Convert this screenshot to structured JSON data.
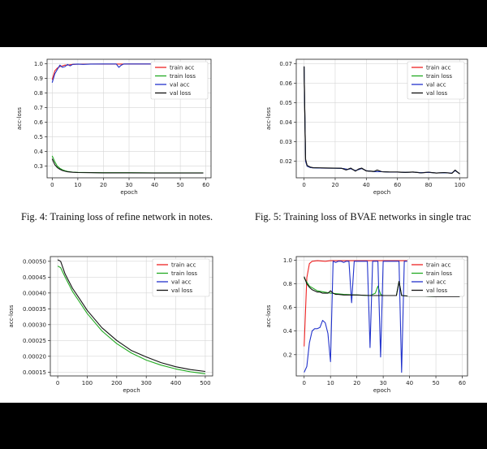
{
  "captions": {
    "fig4": "Fig. 4: Training loss of refine network in notes.",
    "fig5": "Fig. 5: Training loss of BVAE networks in single trac"
  },
  "chart_data": [
    {
      "id": "refine",
      "type": "line",
      "xlabel": "epoch",
      "ylabel": "acc-loss",
      "xlim": [
        -2,
        62
      ],
      "ylim": [
        0.22,
        1.03
      ],
      "xticks": [
        0,
        10,
        20,
        30,
        40,
        50,
        60
      ],
      "xtick_labels": [
        "0",
        "10",
        "20",
        "30",
        "40",
        "50",
        "60"
      ],
      "yticks": [
        0.3,
        0.4,
        0.5,
        0.6,
        0.7,
        0.8,
        0.9,
        1.0
      ],
      "ytick_labels": [
        "0.3",
        "0.4",
        "0.5",
        "0.6",
        "0.7",
        "0.8",
        "0.9",
        "1.0"
      ],
      "grid": true,
      "legend": "top-right",
      "series": [
        {
          "name": "train acc",
          "color": "#ee2222",
          "x": [
            0,
            1,
            2,
            3,
            4,
            5,
            6,
            8,
            10,
            15,
            20,
            25,
            27,
            28,
            30,
            35,
            40,
            45,
            50,
            55,
            59
          ],
          "values": [
            0.89,
            0.95,
            0.97,
            0.98,
            0.985,
            0.99,
            0.99,
            0.995,
            0.996,
            0.997,
            0.997,
            0.997,
            0.997,
            0.997,
            0.998,
            0.998,
            0.998,
            0.998,
            0.998,
            0.998,
            0.998
          ]
        },
        {
          "name": "train loss",
          "color": "#22aa22",
          "x": [
            0,
            1,
            2,
            3,
            4,
            5,
            6,
            8,
            10,
            15,
            20,
            30,
            40,
            50,
            59
          ],
          "values": [
            0.37,
            0.33,
            0.3,
            0.285,
            0.275,
            0.268,
            0.263,
            0.259,
            0.257,
            0.256,
            0.255,
            0.255,
            0.254,
            0.254,
            0.254
          ]
        },
        {
          "name": "val acc",
          "color": "#2233cc",
          "x": [
            0,
            1,
            2,
            3,
            4,
            5,
            6,
            7,
            8,
            10,
            12,
            15,
            20,
            25,
            26,
            27,
            28,
            30,
            35,
            40,
            45,
            50,
            55,
            59
          ],
          "values": [
            0.87,
            0.93,
            0.96,
            0.99,
            0.975,
            0.98,
            0.995,
            0.985,
            0.995,
            0.997,
            0.995,
            0.997,
            0.998,
            0.998,
            0.975,
            0.99,
            0.998,
            0.998,
            0.998,
            0.998,
            0.998,
            0.998,
            0.998,
            0.998
          ]
        },
        {
          "name": "val loss",
          "color": "#111111",
          "x": [
            0,
            1,
            2,
            3,
            4,
            5,
            6,
            8,
            10,
            15,
            20,
            30,
            40,
            50,
            59
          ],
          "values": [
            0.35,
            0.31,
            0.29,
            0.278,
            0.27,
            0.265,
            0.261,
            0.258,
            0.256,
            0.255,
            0.254,
            0.254,
            0.253,
            0.253,
            0.253
          ]
        }
      ]
    },
    {
      "id": "bvae",
      "type": "line",
      "xlabel": "epoch",
      "ylabel": "acc-loss",
      "xlim": [
        -5,
        105
      ],
      "ylim": [
        0.0115,
        0.0722
      ],
      "xticks": [
        0,
        20,
        40,
        60,
        80,
        100
      ],
      "xtick_labels": [
        "0",
        "20",
        "40",
        "60",
        "80",
        "100"
      ],
      "yticks": [
        0.02,
        0.03,
        0.04,
        0.05,
        0.06,
        0.07
      ],
      "ytick_labels": [
        "0.02",
        "0.03",
        "0.04",
        "0.05",
        "0.06",
        "0.07"
      ],
      "grid": true,
      "legend": "top-right",
      "series": [
        {
          "name": "train acc",
          "color": "#ee2222",
          "x": [
            0,
            1,
            2,
            4,
            6,
            10,
            20,
            25,
            28,
            30,
            33,
            35,
            37,
            40,
            45,
            50,
            55,
            60,
            65,
            70,
            75,
            80,
            85,
            90,
            95,
            97,
            100
          ],
          "values": [
            0.0685,
            0.02,
            0.0175,
            0.0168,
            0.0166,
            0.0165,
            0.0164,
            0.0163,
            0.0158,
            0.0162,
            0.0152,
            0.0157,
            0.0163,
            0.0151,
            0.0147,
            0.0146,
            0.0144,
            0.0144,
            0.0143,
            0.0144,
            0.0141,
            0.0143,
            0.014,
            0.0141,
            0.0139,
            0.0152,
            0.0136
          ]
        },
        {
          "name": "train loss",
          "color": "#22aa22",
          "x": [
            0,
            1,
            2,
            4,
            6,
            10,
            20,
            25,
            28,
            30,
            33,
            35,
            37,
            40,
            45,
            50,
            55,
            60,
            65,
            70,
            75,
            80,
            85,
            90,
            95,
            97,
            100
          ],
          "values": [
            0.0685,
            0.02,
            0.0175,
            0.0168,
            0.0166,
            0.0165,
            0.0164,
            0.0163,
            0.0158,
            0.0162,
            0.0152,
            0.0157,
            0.0163,
            0.0151,
            0.0147,
            0.0146,
            0.0144,
            0.0144,
            0.0143,
            0.0144,
            0.0141,
            0.0143,
            0.014,
            0.0141,
            0.0139,
            0.0152,
            0.0136
          ]
        },
        {
          "name": "val acc",
          "color": "#2233cc",
          "x": [
            0,
            1,
            2,
            4,
            6,
            10,
            20,
            25,
            28,
            30,
            33,
            35,
            37,
            40,
            45,
            50,
            55,
            60,
            65,
            70,
            75,
            80,
            85,
            90,
            95,
            97,
            100
          ],
          "values": [
            0.0685,
            0.02,
            0.0175,
            0.0168,
            0.0166,
            0.0165,
            0.0164,
            0.0163,
            0.0158,
            0.0162,
            0.0152,
            0.0157,
            0.0163,
            0.0151,
            0.0147,
            0.0146,
            0.0144,
            0.0144,
            0.0143,
            0.0144,
            0.0141,
            0.0143,
            0.014,
            0.0141,
            0.0139,
            0.0152,
            0.0136
          ]
        },
        {
          "name": "val loss",
          "color": "#111111",
          "x": [
            0,
            1,
            2,
            4,
            6,
            10,
            20,
            24,
            27,
            30,
            33,
            35,
            37,
            40,
            45,
            47,
            50,
            55,
            60,
            65,
            70,
            75,
            80,
            85,
            90,
            95,
            97,
            100
          ],
          "values": [
            0.0685,
            0.021,
            0.0178,
            0.017,
            0.0167,
            0.0166,
            0.0165,
            0.0164,
            0.0155,
            0.0165,
            0.0149,
            0.016,
            0.0165,
            0.015,
            0.0148,
            0.0155,
            0.0146,
            0.0145,
            0.0145,
            0.0143,
            0.0145,
            0.014,
            0.0144,
            0.0139,
            0.0142,
            0.0138,
            0.0155,
            0.0135
          ]
        }
      ]
    },
    {
      "id": "loss500",
      "type": "line",
      "xlabel": "epoch",
      "ylabel": "acc-loss",
      "xlim": [
        -25,
        525
      ],
      "ylim": [
        0.000138,
        0.000515
      ],
      "xticks": [
        0,
        100,
        200,
        300,
        400,
        500
      ],
      "xtick_labels": [
        "0",
        "100",
        "200",
        "300",
        "400",
        "500"
      ],
      "yticks": [
        0.00015,
        0.0002,
        0.00025,
        0.0003,
        0.00035,
        0.0004,
        0.00045,
        0.0005
      ],
      "ytick_labels": [
        "0.00015",
        "0.00020",
        "0.00025",
        "0.00030",
        "0.00035",
        "0.00040",
        "0.00045",
        "0.00050"
      ],
      "grid": true,
      "legend": "top-right",
      "series": [
        {
          "name": "train acc",
          "color": "#ee2222",
          "x": [],
          "values": []
        },
        {
          "name": "train loss",
          "color": "#22aa22",
          "x": [
            0,
            10,
            25,
            50,
            75,
            100,
            150,
            200,
            250,
            300,
            350,
            400,
            450,
            500
          ],
          "values": [
            0.000485,
            0.00048,
            0.00045,
            0.000405,
            0.00037,
            0.000335,
            0.00028,
            0.00024,
            0.00021,
            0.000188,
            0.000172,
            0.00016,
            0.000151,
            0.000145
          ]
        },
        {
          "name": "val acc",
          "color": "#2233cc",
          "x": [],
          "values": []
        },
        {
          "name": "val loss",
          "color": "#111111",
          "x": [
            0,
            10,
            25,
            50,
            75,
            100,
            150,
            200,
            250,
            300,
            350,
            400,
            450,
            500
          ],
          "values": [
            0.000505,
            0.0005,
            0.00046,
            0.000415,
            0.00038,
            0.000345,
            0.00029,
            0.00025,
            0.000218,
            0.000198,
            0.00018,
            0.000167,
            0.000158,
            0.000152
          ]
        }
      ]
    },
    {
      "id": "accloss",
      "type": "line",
      "xlabel": "epoch",
      "ylabel": "acc-loss",
      "xlim": [
        -3,
        62
      ],
      "ylim": [
        0.02,
        1.03
      ],
      "xticks": [
        0,
        10,
        20,
        30,
        40,
        50,
        60
      ],
      "xtick_labels": [
        "0",
        "10",
        "20",
        "30",
        "40",
        "50",
        "60"
      ],
      "yticks": [
        0.2,
        0.4,
        0.6,
        0.8,
        1.0
      ],
      "ytick_labels": [
        "0.2",
        "0.4",
        "0.6",
        "0.8",
        "1.0"
      ],
      "grid": true,
      "legend": "top-right",
      "series": [
        {
          "name": "train acc",
          "color": "#ee2222",
          "x": [
            0,
            1,
            2,
            3,
            5,
            8,
            10,
            15,
            20,
            25,
            30,
            35,
            40,
            45,
            50,
            55,
            59
          ],
          "values": [
            0.27,
            0.85,
            0.97,
            0.99,
            0.995,
            0.99,
            0.995,
            0.995,
            0.995,
            0.995,
            0.995,
            0.995,
            0.995,
            0.995,
            0.995,
            0.995,
            0.995
          ]
        },
        {
          "name": "train loss",
          "color": "#22aa22",
          "x": [
            0,
            2,
            5,
            10,
            15,
            20,
            25,
            27,
            28,
            29,
            30,
            35,
            36,
            37,
            40,
            45,
            50,
            55,
            59
          ],
          "values": [
            0.85,
            0.78,
            0.74,
            0.72,
            0.71,
            0.705,
            0.7,
            0.72,
            0.78,
            0.71,
            0.7,
            0.7,
            0.82,
            0.7,
            0.695,
            0.695,
            0.69,
            0.69,
            0.69
          ]
        },
        {
          "name": "val acc",
          "color": "#2233cc",
          "x": [
            0,
            1,
            2,
            3,
            4,
            5,
            6,
            7,
            8,
            9,
            10,
            11,
            12,
            13,
            14,
            15,
            16,
            17,
            18,
            19,
            20,
            21,
            22,
            23,
            24,
            25,
            26,
            27,
            28,
            29,
            30,
            31,
            32,
            33,
            34,
            35,
            36,
            37,
            38,
            39,
            40,
            41,
            42,
            43,
            44,
            45,
            46,
            47
          ],
          "values": [
            0.05,
            0.1,
            0.3,
            0.4,
            0.42,
            0.42,
            0.43,
            0.49,
            0.47,
            0.38,
            0.14,
            0.99,
            0.98,
            0.99,
            0.99,
            0.98,
            0.99,
            0.99,
            0.64,
            0.99,
            0.99,
            0.99,
            0.99,
            0.99,
            0.99,
            0.26,
            0.99,
            0.99,
            0.99,
            0.18,
            0.99,
            0.99,
            0.99,
            0.99,
            0.99,
            0.99,
            0.99,
            0.05,
            0.99,
            0.99,
            0.99,
            0.99,
            0.99,
            0.99,
            0.99,
            0.99,
            0.99,
            0.99
          ]
        },
        {
          "name": "val loss",
          "color": "#111111",
          "x": [
            0,
            1,
            2,
            3,
            4,
            5,
            6,
            7,
            8,
            9,
            10,
            11,
            12,
            13,
            15,
            20,
            25,
            30,
            35,
            36,
            37,
            40,
            45,
            50,
            55,
            59
          ],
          "values": [
            0.86,
            0.8,
            0.77,
            0.75,
            0.74,
            0.73,
            0.73,
            0.72,
            0.72,
            0.72,
            0.74,
            0.72,
            0.71,
            0.71,
            0.705,
            0.705,
            0.7,
            0.7,
            0.7,
            0.82,
            0.7,
            0.695,
            0.695,
            0.69,
            0.69,
            0.69
          ]
        }
      ]
    }
  ]
}
